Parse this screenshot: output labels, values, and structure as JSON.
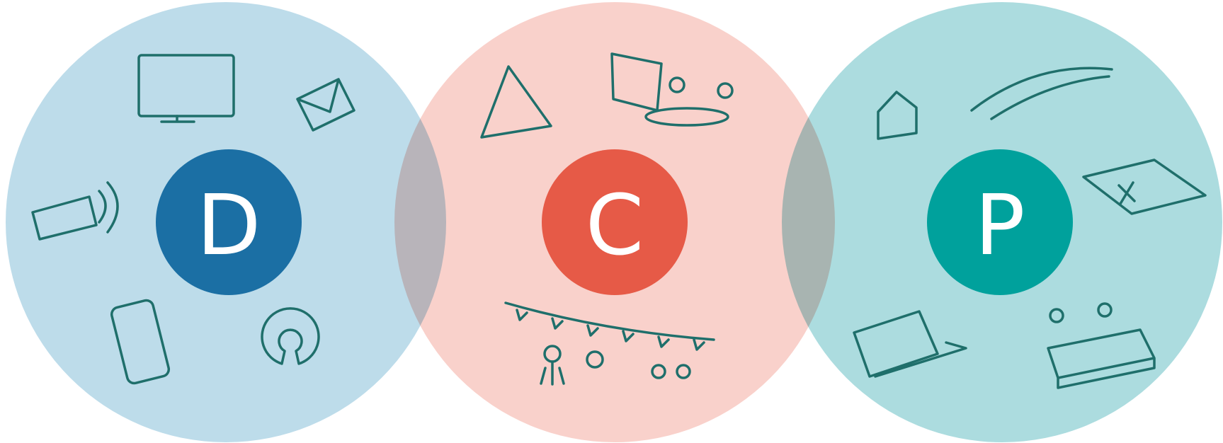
{
  "nodes": [
    {
      "label": "D"
    },
    {
      "label": "C"
    },
    {
      "label": "P"
    }
  ]
}
